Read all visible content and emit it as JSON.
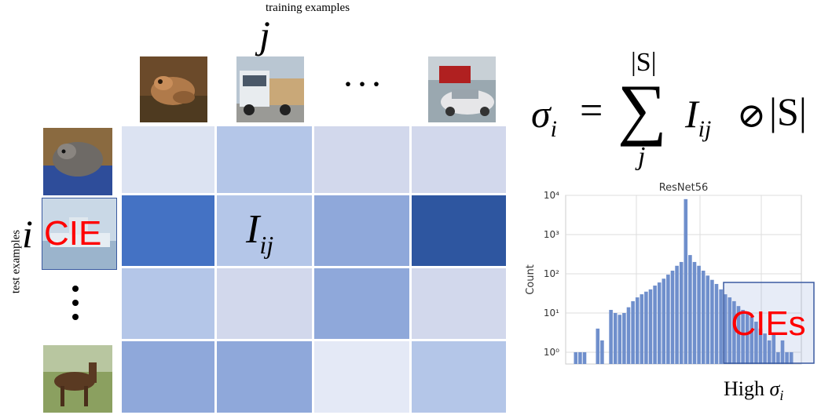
{
  "top_axis_label": "training examples",
  "top_index": "j",
  "side_axis_label": "test examples",
  "side_index": "i",
  "ellipsis_h": "···",
  "ellipsis_v": "⋮",
  "cell_label": {
    "base": "I",
    "sub": "ij"
  },
  "cie_label": "CIE",
  "colors": {
    "c1": "#dce3f2",
    "c2": "#b4c6e8",
    "c3": "#d2d8ec",
    "c4": "#4472c4",
    "c5": "#8fa8da",
    "c6": "#2e56a0",
    "c7": "#e4e9f6",
    "accent": "#ff0000",
    "frame": "#3a5aa0"
  },
  "matrix": [
    [
      "c1",
      "c2",
      "c3",
      "c3"
    ],
    [
      "c4",
      "c2",
      "c5",
      "c6"
    ],
    [
      "c2",
      "c3",
      "c5",
      "c3"
    ],
    [
      "c5",
      "c5",
      "c7",
      "c2"
    ]
  ],
  "formula": {
    "lhs": "σ",
    "lhs_sub": "i",
    "equals": "=",
    "sum_upper": "|S|",
    "sum_symbol": "∑",
    "sum_lower": "j",
    "term": "I",
    "term_sub": "ij",
    "operator": "⊘",
    "rhs": "|S|"
  },
  "chart_data": {
    "type": "bar",
    "title": "ResNet56",
    "ylabel": "Count",
    "yscale": "log",
    "ylim": [
      0.5,
      10000
    ],
    "yticks": [
      "10⁰",
      "10¹",
      "10²",
      "10³",
      "10⁴"
    ],
    "grid": true,
    "values": [
      1,
      1,
      1,
      0,
      0,
      4,
      2,
      0,
      12,
      10,
      9,
      10,
      14,
      20,
      25,
      30,
      35,
      40,
      50,
      60,
      75,
      95,
      120,
      160,
      200,
      8000,
      300,
      200,
      160,
      120,
      90,
      70,
      55,
      40,
      30,
      25,
      20,
      15,
      12,
      10,
      8,
      6,
      4,
      3,
      2,
      3,
      1,
      2,
      1,
      1
    ],
    "highlight_label": "CIEs",
    "highlight_caption": "High",
    "highlight_caption_math": "σ",
    "highlight_caption_sub": "i"
  }
}
